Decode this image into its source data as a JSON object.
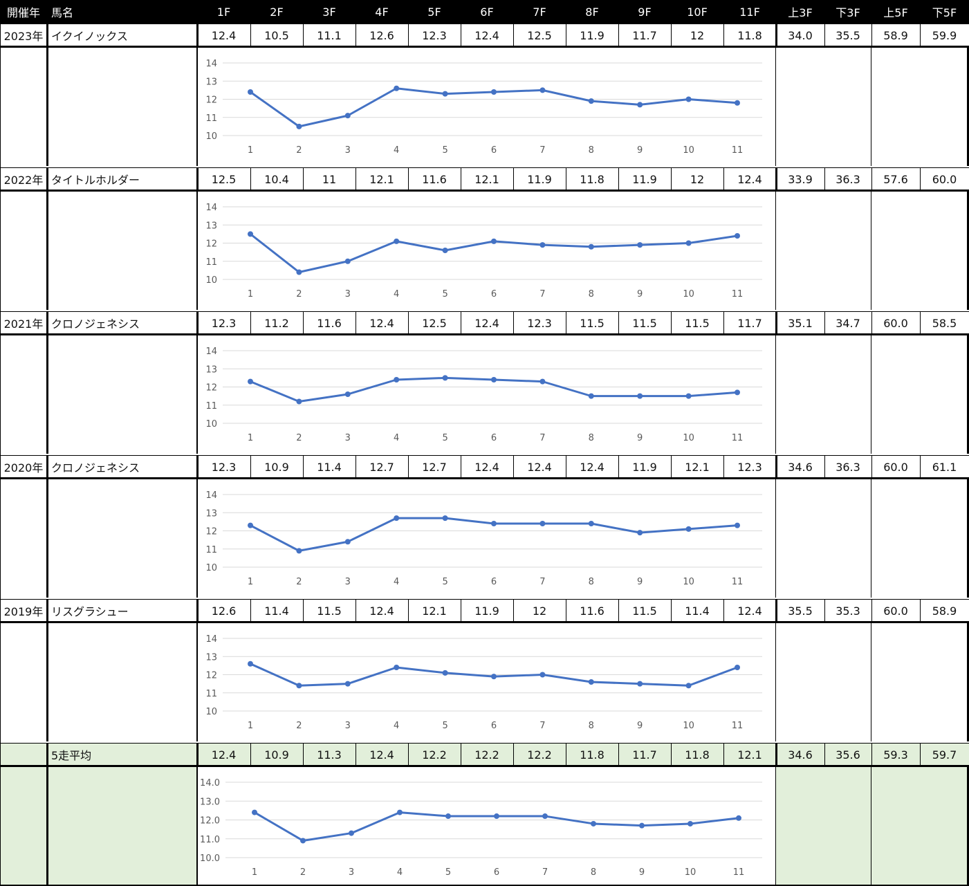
{
  "header": {
    "year_label": "開催年",
    "name_label": "馬名",
    "furlongs": [
      "1F",
      "2F",
      "3F",
      "4F",
      "5F",
      "6F",
      "7F",
      "8F",
      "9F",
      "10F",
      "11F"
    ],
    "agg_labels": [
      "上3F",
      "下3F",
      "上5F",
      "下5F"
    ]
  },
  "rows": [
    {
      "year": "2023年",
      "name": "イクイノックス",
      "laps": [
        "12.4",
        "10.5",
        "11.1",
        "12.6",
        "12.3",
        "12.4",
        "12.5",
        "11.9",
        "11.7",
        "12",
        "11.8"
      ],
      "agg": [
        "34.0",
        "35.5",
        "58.9",
        "59.9"
      ]
    },
    {
      "year": "2022年",
      "name": "タイトルホルダー",
      "laps": [
        "12.5",
        "10.4",
        "11",
        "12.1",
        "11.6",
        "12.1",
        "11.9",
        "11.8",
        "11.9",
        "12",
        "12.4"
      ],
      "agg": [
        "33.9",
        "36.3",
        "57.6",
        "60.0"
      ]
    },
    {
      "year": "2021年",
      "name": "クロノジェネシス",
      "laps": [
        "12.3",
        "11.2",
        "11.6",
        "12.4",
        "12.5",
        "12.4",
        "12.3",
        "11.5",
        "11.5",
        "11.5",
        "11.7"
      ],
      "agg": [
        "35.1",
        "34.7",
        "60.0",
        "58.5"
      ]
    },
    {
      "year": "2020年",
      "name": "クロノジェネシス",
      "laps": [
        "12.3",
        "10.9",
        "11.4",
        "12.7",
        "12.7",
        "12.4",
        "12.4",
        "12.4",
        "11.9",
        "12.1",
        "12.3"
      ],
      "agg": [
        "34.6",
        "36.3",
        "60.0",
        "61.1"
      ]
    },
    {
      "year": "2019年",
      "name": "リスグラシュー",
      "laps": [
        "12.6",
        "11.4",
        "11.5",
        "12.4",
        "12.1",
        "11.9",
        "12",
        "11.6",
        "11.5",
        "11.4",
        "12.4"
      ],
      "agg": [
        "35.5",
        "35.3",
        "60.0",
        "58.9"
      ]
    },
    {
      "year": "",
      "name": "5走平均",
      "laps": [
        "12.4",
        "10.9",
        "11.3",
        "12.4",
        "12.2",
        "12.2",
        "12.2",
        "11.8",
        "11.7",
        "11.8",
        "12.1"
      ],
      "agg": [
        "34.6",
        "35.6",
        "59.3",
        "59.7"
      ]
    }
  ],
  "chart_data": [
    {
      "type": "line",
      "x": [
        1,
        2,
        3,
        4,
        5,
        6,
        7,
        8,
        9,
        10,
        11
      ],
      "series": [
        {
          "values": [
            12.4,
            10.5,
            11.1,
            12.6,
            12.3,
            12.4,
            12.5,
            11.9,
            11.7,
            12,
            11.8
          ]
        }
      ],
      "yticks": [
        "14",
        "13",
        "12",
        "11",
        "10"
      ],
      "ylim": [
        10,
        14
      ],
      "grid": true,
      "color": "#4472c4"
    },
    {
      "type": "line",
      "x": [
        1,
        2,
        3,
        4,
        5,
        6,
        7,
        8,
        9,
        10,
        11
      ],
      "series": [
        {
          "values": [
            12.5,
            10.4,
            11,
            12.1,
            11.6,
            12.1,
            11.9,
            11.8,
            11.9,
            12,
            12.4
          ]
        }
      ],
      "yticks": [
        "14",
        "13",
        "12",
        "11",
        "10"
      ],
      "ylim": [
        10,
        14
      ],
      "grid": true,
      "color": "#4472c4"
    },
    {
      "type": "line",
      "x": [
        1,
        2,
        3,
        4,
        5,
        6,
        7,
        8,
        9,
        10,
        11
      ],
      "series": [
        {
          "values": [
            12.3,
            11.2,
            11.6,
            12.4,
            12.5,
            12.4,
            12.3,
            11.5,
            11.5,
            11.5,
            11.7
          ]
        }
      ],
      "yticks": [
        "14",
        "13",
        "12",
        "11",
        "10"
      ],
      "ylim": [
        10,
        14
      ],
      "grid": true,
      "color": "#4472c4"
    },
    {
      "type": "line",
      "x": [
        1,
        2,
        3,
        4,
        5,
        6,
        7,
        8,
        9,
        10,
        11
      ],
      "series": [
        {
          "values": [
            12.3,
            10.9,
            11.4,
            12.7,
            12.7,
            12.4,
            12.4,
            12.4,
            11.9,
            12.1,
            12.3
          ]
        }
      ],
      "yticks": [
        "14",
        "13",
        "12",
        "11",
        "10"
      ],
      "ylim": [
        10,
        14
      ],
      "grid": true,
      "color": "#4472c4"
    },
    {
      "type": "line",
      "x": [
        1,
        2,
        3,
        4,
        5,
        6,
        7,
        8,
        9,
        10,
        11
      ],
      "series": [
        {
          "values": [
            12.6,
            11.4,
            11.5,
            12.4,
            12.1,
            11.9,
            12,
            11.6,
            11.5,
            11.4,
            12.4
          ]
        }
      ],
      "yticks": [
        "14",
        "13",
        "12",
        "11",
        "10"
      ],
      "ylim": [
        10,
        14
      ],
      "grid": true,
      "color": "#4472c4"
    },
    {
      "type": "line",
      "x": [
        1,
        2,
        3,
        4,
        5,
        6,
        7,
        8,
        9,
        10,
        11
      ],
      "series": [
        {
          "values": [
            12.4,
            10.9,
            11.3,
            12.4,
            12.2,
            12.2,
            12.2,
            11.8,
            11.7,
            11.8,
            12.1
          ]
        }
      ],
      "yticks": [
        "14.0",
        "13.0",
        "12.0",
        "11.0",
        "10.0"
      ],
      "ylim": [
        10,
        14
      ],
      "grid": true,
      "color": "#4472c4"
    }
  ],
  "colors": {
    "header_bg": "#000000",
    "header_fg": "#ffffff",
    "avg_bg": "#e2efda",
    "line": "#4472c4",
    "grid": "#d9d9d9"
  }
}
